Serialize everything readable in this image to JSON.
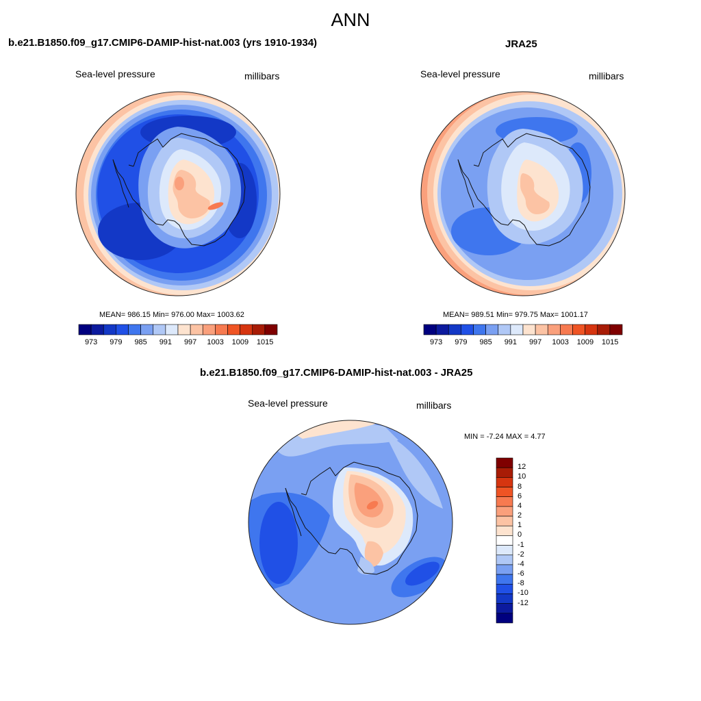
{
  "title": "ANN",
  "panels": [
    {
      "case_title": "b.e21.B1850.f09_g17.CMIP6-DAMIP-hist-nat.003 (yrs 1910-1934)",
      "left_label": "Sea-level pressure",
      "right_label": "millibars",
      "stats": "MEAN= 986.15  Min= 976.00  Max= 1003.62"
    },
    {
      "case_title": "JRA25",
      "left_label": "Sea-level pressure",
      "right_label": "millibars",
      "stats": "MEAN= 989.51  Min= 979.75  Max= 1001.17"
    },
    {
      "case_title": "b.e21.B1850.f09_g17.CMIP6-DAMIP-hist-nat.003 - JRA25",
      "left_label": "Sea-level pressure",
      "right_label": "millibars",
      "stats": "MIN =  -7.24 MAX =   4.77"
    }
  ],
  "colorbar_field": {
    "colors": [
      "#00007f",
      "#0c1a9e",
      "#1338c6",
      "#2050e6",
      "#3f76ee",
      "#7aa0f2",
      "#b0c8f6",
      "#dde9fb",
      "#fde3cf",
      "#fcc3a4",
      "#faa07c",
      "#f77a50",
      "#ef5424",
      "#d63510",
      "#a81c06",
      "#7f0000"
    ],
    "tick_labels": [
      "973",
      "979",
      "985",
      "991",
      "997",
      "1003",
      "1009",
      "1015"
    ]
  },
  "colorbar_diff": {
    "colors": [
      "#00007f",
      "#0c1a9e",
      "#1338c6",
      "#2050e6",
      "#3f76ee",
      "#7aa0f2",
      "#b0c8f6",
      "#dde9fb",
      "#ffffff",
      "#fde3cf",
      "#fcc3a4",
      "#faa07c",
      "#f77a50",
      "#ef5424",
      "#d63510",
      "#a81c06",
      "#7f0000"
    ],
    "tick_labels": [
      "-12",
      "-10",
      "-8",
      "-6",
      "-4",
      "-2",
      "-1",
      "0",
      "1",
      "2",
      "4",
      "6",
      "8",
      "10",
      "12"
    ]
  }
}
